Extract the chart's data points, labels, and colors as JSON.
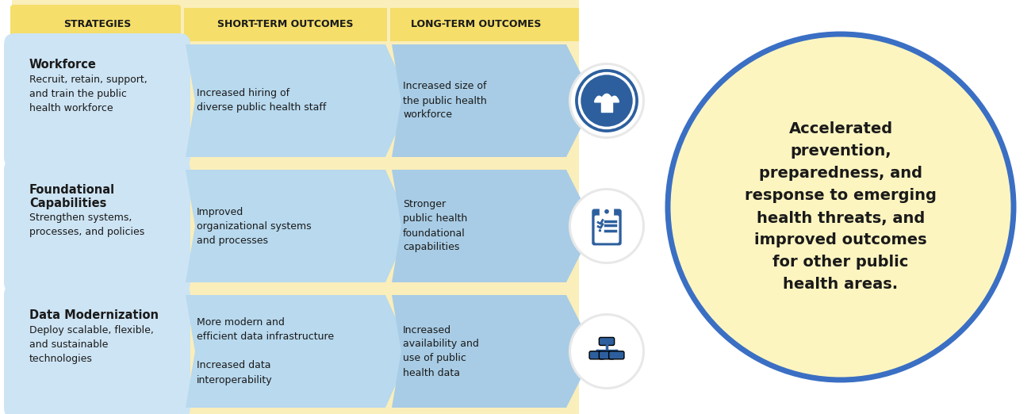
{
  "bg_color": "#ffffff",
  "yellow_bg": "#faeeba",
  "light_blue_row": "#c5dff0",
  "lighter_blue_arrow": "#b0d4ec",
  "lightest_blue_arrow": "#a8cce8",
  "header_yellow": "#f5e07a",
  "dark_blue": "#2d5f9e",
  "icon_ring_color": "#2d5f9e",
  "circle_fill": "#fdf5c0",
  "circle_border": "#3a6fc4",
  "text_dark": "#1a1a1a",
  "col_headers": [
    "STRATEGIES",
    "SHORT-TERM OUTCOMES",
    "LONG-TERM OUTCOMES"
  ],
  "rows": [
    {
      "strategy_title": "Workforce",
      "strategy_body": "Recruit, retain, support,\nand train the public\nhealth workforce",
      "short_term": "Increased hiring of\ndiverse public health staff",
      "long_term": "Increased size of\nthe public health\nworkforce"
    },
    {
      "strategy_title": "Foundational\nCapabilities",
      "strategy_body": "Strengthen systems,\nprocesses, and policies",
      "short_term": "Improved\norganizational systems\nand processes",
      "long_term": "Stronger\npublic health\nfoundational\ncapabilities"
    },
    {
      "strategy_title": "Data Modernization",
      "strategy_body": "Deploy scalable, flexible,\nand sustainable\ntechnologies",
      "short_term": "More modern and\nefficient data infrastructure\n\nIncreased data\ninteroperability",
      "long_term": "Increased\navailability and\nuse of public\nhealth data"
    }
  ],
  "circle_text": "Accelerated\nprevention,\npreparedness, and\nresponse to emerging\nhealth threats, and\nimproved outcomes\nfor other public\nhealth areas.",
  "icon_color": "#2d5f9e"
}
